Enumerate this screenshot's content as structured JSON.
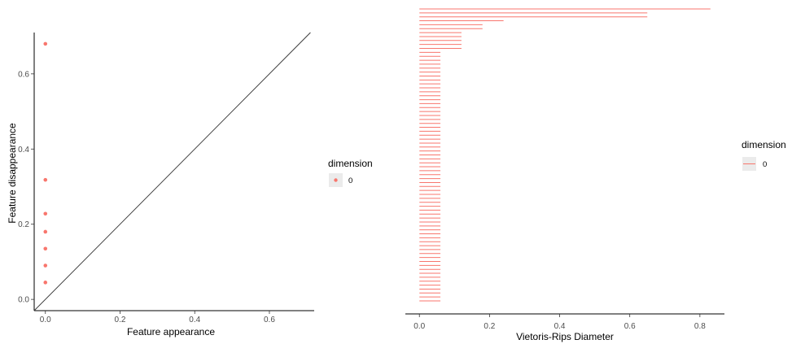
{
  "colors": {
    "points": "#f8766d",
    "axis": "#000000",
    "diagonal": "#333333",
    "legend_key_bg": "#ebebeb",
    "tick_text": "#4d4d4d"
  },
  "chart_data": [
    {
      "type": "scatter",
      "title": "",
      "xlabel": "Feature appearance",
      "ylabel": "Feature disappearance",
      "xlim": [
        -0.03,
        0.72
      ],
      "ylim": [
        -0.03,
        0.71
      ],
      "x_ticks": [
        "0.0",
        "0.2",
        "0.4",
        "0.6"
      ],
      "y_ticks": [
        "0.0",
        "0.2",
        "0.4",
        "0.6"
      ],
      "reference_line": "y = x",
      "grid": false,
      "legend": {
        "title": "dimension",
        "entries": [
          "0"
        ],
        "placement": "right"
      },
      "series": [
        {
          "name": "0",
          "x": [
            0,
            0,
            0,
            0,
            0,
            0,
            0
          ],
          "y": [
            0.045,
            0.09,
            0.135,
            0.18,
            0.228,
            0.318,
            0.68
          ]
        }
      ]
    },
    {
      "type": "barcode",
      "title": "",
      "xlabel": "Vietoris-Rips Diameter",
      "ylabel": "",
      "xlim": [
        -0.04,
        0.87
      ],
      "x_ticks": [
        "0.0",
        "0.2",
        "0.4",
        "0.6",
        "0.8"
      ],
      "grid": false,
      "legend": {
        "title": "dimension",
        "entries": [
          "0"
        ],
        "placement": "right"
      },
      "series": [
        {
          "name": "0",
          "bar_ends": [
            0.83,
            0.65,
            0.65,
            0.24,
            0.18,
            0.18,
            0.12,
            0.12,
            0.12,
            0.12,
            0.12,
            0.06,
            0.06,
            0.06,
            0.06,
            0.06,
            0.06,
            0.06,
            0.06,
            0.06,
            0.06,
            0.06,
            0.06,
            0.06,
            0.06,
            0.06,
            0.06,
            0.06,
            0.06,
            0.06,
            0.06,
            0.06,
            0.06,
            0.06,
            0.06,
            0.06,
            0.06,
            0.06,
            0.06,
            0.06,
            0.06,
            0.06,
            0.06,
            0.06,
            0.06,
            0.06,
            0.06,
            0.06,
            0.06,
            0.06,
            0.06,
            0.06,
            0.06,
            0.06,
            0.06,
            0.06,
            0.06,
            0.06,
            0.06,
            0.06,
            0.06,
            0.06,
            0.06,
            0.06,
            0.06,
            0.06,
            0.06,
            0.06,
            0.06,
            0.06,
            0.06,
            0.06,
            0.06,
            0.06,
            0.06
          ],
          "bar_start": 0
        }
      ]
    }
  ]
}
